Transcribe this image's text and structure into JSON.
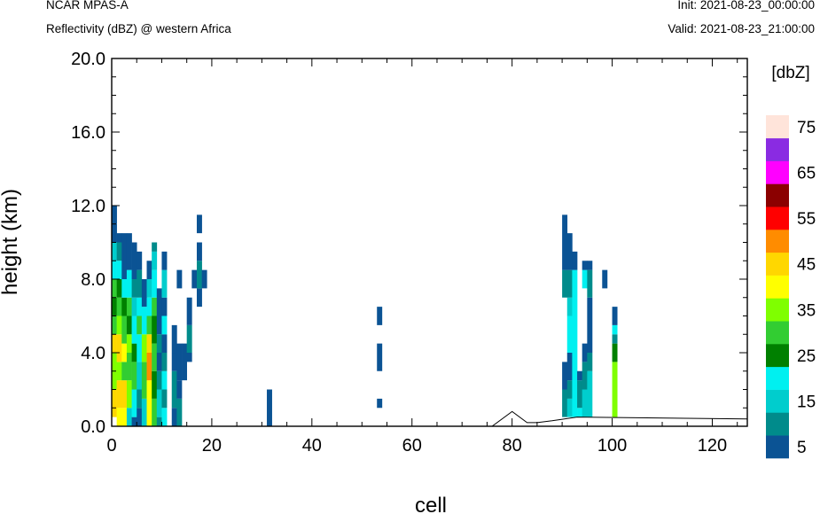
{
  "header": {
    "model": "NCAR MPAS-A",
    "field": "Reflectivity (dBZ) @ western Africa",
    "init": "Init: 2021-08-23_00:00:00",
    "valid": "Valid: 2021-08-23_21:00:00"
  },
  "chart_data": {
    "type": "heatmap",
    "xlabel": "cell",
    "ylabel": "height (km)",
    "xlim": [
      0,
      127
    ],
    "ylim": [
      0,
      20
    ],
    "x_ticks": [
      0,
      20,
      40,
      60,
      80,
      100,
      120
    ],
    "y_ticks": [
      "0.0",
      "4.0",
      "8.0",
      "12.0",
      "16.0",
      "20.0"
    ],
    "cell_width": 1,
    "cell_height_km": 0.5,
    "colorbar": {
      "title": "[dbZ]",
      "levels": [
        5,
        10,
        15,
        20,
        25,
        30,
        35,
        40,
        45,
        50,
        55,
        60,
        65,
        70,
        75
      ],
      "labels": [
        "5",
        "15",
        "25",
        "35",
        "45",
        "55",
        "65",
        "75"
      ],
      "colors": [
        "#0b5394",
        "#008b8b",
        "#00cdcd",
        "#00f0f0",
        "#008000",
        "#32cd32",
        "#7fff00",
        "#ffff00",
        "#ffd700",
        "#ff8c00",
        "#ff0000",
        "#8b0000",
        "#ff00ff",
        "#8a2be2",
        "#ffe4da"
      ]
    },
    "columns": [
      {
        "x": 0,
        "segments": [
          [
            0.5,
            2,
            45
          ],
          [
            2,
            4,
            35
          ],
          [
            4,
            5,
            45
          ],
          [
            5,
            6,
            30
          ],
          [
            6,
            7,
            25
          ],
          [
            7,
            8,
            30
          ],
          [
            8,
            9,
            20
          ],
          [
            9,
            10,
            15
          ],
          [
            10,
            11,
            5
          ],
          [
            11,
            12,
            5
          ]
        ]
      },
      {
        "x": 1,
        "segments": [
          [
            0,
            1,
            40
          ],
          [
            1,
            2.5,
            45
          ],
          [
            2.5,
            3.5,
            35
          ],
          [
            3.5,
            5,
            45
          ],
          [
            5,
            6,
            35
          ],
          [
            6,
            7,
            30
          ],
          [
            7,
            8,
            25
          ],
          [
            8,
            9,
            20
          ],
          [
            9,
            10,
            10
          ],
          [
            10,
            10.5,
            5
          ]
        ]
      },
      {
        "x": 2,
        "segments": [
          [
            0,
            1,
            40
          ],
          [
            1,
            2.5,
            45
          ],
          [
            2.5,
            3.5,
            30
          ],
          [
            3.5,
            4.5,
            40
          ],
          [
            4.5,
            6,
            30
          ],
          [
            6,
            7,
            25
          ],
          [
            7,
            8,
            20
          ],
          [
            8,
            10.5,
            5
          ]
        ]
      },
      {
        "x": 3,
        "segments": [
          [
            0,
            1,
            15
          ],
          [
            1,
            2.5,
            35
          ],
          [
            2.5,
            4,
            30
          ],
          [
            4,
            5,
            35
          ],
          [
            5,
            6,
            25
          ],
          [
            6,
            7,
            30
          ],
          [
            7,
            8.5,
            20
          ],
          [
            8.5,
            10.5,
            5
          ]
        ]
      },
      {
        "x": 4,
        "segments": [
          [
            0,
            0.5,
            5
          ],
          [
            0.5,
            2,
            20
          ],
          [
            2,
            3.5,
            30
          ],
          [
            3.5,
            4.5,
            25
          ],
          [
            4.5,
            6,
            20
          ],
          [
            6,
            7,
            15
          ],
          [
            7,
            8,
            10
          ],
          [
            8,
            10,
            5
          ]
        ]
      },
      {
        "x": 5,
        "segments": [
          [
            0,
            1,
            5
          ],
          [
            1,
            2,
            10
          ],
          [
            2,
            3.5,
            15
          ],
          [
            3.5,
            5,
            20
          ],
          [
            5,
            6,
            30
          ],
          [
            6,
            7,
            20
          ],
          [
            7,
            8.5,
            10
          ],
          [
            8.5,
            9.5,
            5
          ]
        ]
      },
      {
        "x": 6,
        "segments": [
          [
            0,
            1.5,
            15
          ],
          [
            1.5,
            3.5,
            30
          ],
          [
            3.5,
            5,
            35
          ],
          [
            5,
            6.5,
            20
          ],
          [
            6.5,
            8,
            5
          ]
        ]
      },
      {
        "x": 7,
        "segments": [
          [
            0,
            2.5,
            40
          ],
          [
            2.5,
            4,
            50
          ],
          [
            4,
            5,
            45
          ],
          [
            5,
            6,
            30
          ],
          [
            6,
            7,
            20
          ],
          [
            7,
            8,
            15
          ],
          [
            8,
            9,
            5
          ]
        ]
      },
      {
        "x": 8,
        "segments": [
          [
            0,
            1.5,
            30
          ],
          [
            1.5,
            3,
            25
          ],
          [
            3,
            4.5,
            30
          ],
          [
            4.5,
            6,
            25
          ],
          [
            6,
            7,
            30
          ],
          [
            7,
            8.5,
            20
          ],
          [
            8.5,
            9.5,
            15
          ],
          [
            9.5,
            10,
            10
          ]
        ]
      },
      {
        "x": 9,
        "segments": [
          [
            0,
            0.5,
            10
          ],
          [
            0.5,
            2,
            15
          ],
          [
            2,
            3,
            10
          ],
          [
            3,
            4,
            5
          ],
          [
            4,
            5,
            10
          ],
          [
            5,
            7.5,
            5
          ]
        ]
      },
      {
        "x": 10,
        "segments": [
          [
            0,
            1,
            20
          ],
          [
            1,
            2,
            10
          ],
          [
            2,
            3,
            20
          ],
          [
            3,
            4,
            10
          ],
          [
            4,
            5,
            5
          ],
          [
            5,
            6,
            20
          ],
          [
            6,
            7,
            5
          ],
          [
            7,
            8.5,
            15
          ],
          [
            8.5,
            9.5,
            5
          ]
        ]
      },
      {
        "x": 12,
        "segments": [
          [
            0,
            1,
            5
          ],
          [
            1,
            3,
            10
          ],
          [
            3,
            4,
            5
          ],
          [
            4,
            5.5,
            5
          ]
        ]
      },
      {
        "x": 13,
        "segments": [
          [
            0,
            1.5,
            10
          ],
          [
            1.5,
            2.5,
            5
          ],
          [
            2.5,
            4.5,
            5
          ],
          [
            7.5,
            8.5,
            5
          ]
        ]
      },
      {
        "x": 14,
        "segments": [
          [
            2.5,
            4.5,
            5
          ]
        ]
      },
      {
        "x": 15,
        "segments": [
          [
            3.5,
            4,
            5
          ],
          [
            4,
            5.5,
            10
          ],
          [
            5.5,
            7,
            5
          ]
        ]
      },
      {
        "x": 16,
        "segments": [
          [
            7.5,
            8.5,
            5
          ]
        ]
      },
      {
        "x": 17,
        "segments": [
          [
            6.5,
            7.5,
            5
          ],
          [
            7.5,
            9,
            10
          ],
          [
            9,
            10,
            5
          ],
          [
            10.5,
            11.5,
            5
          ]
        ]
      },
      {
        "x": 18,
        "segments": [
          [
            7.5,
            8.5,
            5
          ]
        ]
      },
      {
        "x": 31,
        "segments": [
          [
            0,
            2,
            5
          ]
        ]
      },
      {
        "x": 53,
        "segments": [
          [
            1,
            1.5,
            5
          ],
          [
            3,
            4.5,
            5
          ],
          [
            5.5,
            6.5,
            5
          ]
        ]
      },
      {
        "x": 90,
        "segments": [
          [
            0.5,
            2,
            10
          ],
          [
            2,
            3.5,
            5
          ],
          [
            7,
            8.5,
            10
          ],
          [
            8.5,
            11.5,
            5
          ]
        ]
      },
      {
        "x": 91,
        "segments": [
          [
            0.5,
            1.5,
            15
          ],
          [
            1.5,
            2.5,
            10
          ],
          [
            2.5,
            4,
            5
          ],
          [
            4,
            6,
            20
          ],
          [
            6,
            7,
            15
          ],
          [
            7,
            8.5,
            10
          ],
          [
            8.5,
            10.5,
            5
          ]
        ]
      },
      {
        "x": 92,
        "segments": [
          [
            0.5,
            6,
            20
          ],
          [
            6,
            8.5,
            20
          ],
          [
            8.5,
            9.5,
            5
          ]
        ]
      },
      {
        "x": 93,
        "segments": [
          [
            0.5,
            1,
            20
          ],
          [
            1,
            2.5,
            10
          ],
          [
            2.5,
            3,
            5
          ]
        ]
      },
      {
        "x": 94,
        "segments": [
          [
            0.5,
            2,
            15
          ],
          [
            2,
            3.5,
            10
          ],
          [
            3.5,
            4.5,
            5
          ],
          [
            7.5,
            8.5,
            20
          ],
          [
            8.5,
            9,
            5
          ]
        ]
      },
      {
        "x": 95,
        "segments": [
          [
            0.5,
            3,
            15
          ],
          [
            3,
            4,
            10
          ],
          [
            4,
            7,
            5
          ],
          [
            7,
            8.5,
            10
          ],
          [
            8.5,
            9,
            5
          ]
        ]
      },
      {
        "x": 98,
        "segments": [
          [
            7.5,
            8.5,
            5
          ]
        ]
      },
      {
        "x": 100,
        "segments": [
          [
            0.5,
            3.5,
            35
          ],
          [
            3.5,
            4.5,
            25
          ],
          [
            4.5,
            5,
            10
          ],
          [
            5,
            5.5,
            20
          ],
          [
            5.5,
            6.5,
            5
          ]
        ]
      }
    ],
    "terrain": [
      [
        0,
        0
      ],
      [
        76,
        0
      ],
      [
        80,
        0.8
      ],
      [
        83,
        0.2
      ],
      [
        85,
        0.2
      ],
      [
        88,
        0.3
      ],
      [
        93,
        0.5
      ],
      [
        127,
        0.4
      ]
    ]
  }
}
